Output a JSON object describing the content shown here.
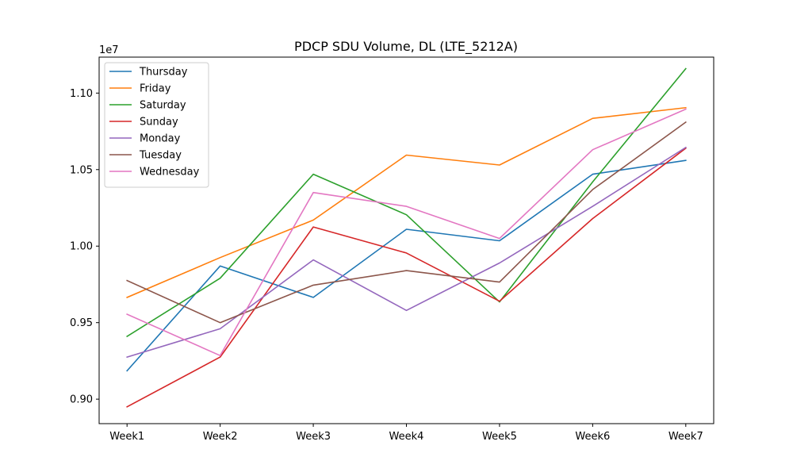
{
  "chart_data": {
    "type": "line",
    "title": "PDCP SDU Volume, DL (LTE_5212A)",
    "xlabel": "",
    "ylabel": "",
    "y_offset_text": "1e7",
    "categories": [
      "Week1",
      "Week2",
      "Week3",
      "Week4",
      "Week5",
      "Week6",
      "Week7"
    ],
    "ylim": [
      0.884,
      1.1235
    ],
    "y_ticks": [
      0.9,
      0.95,
      1.0,
      1.05,
      1.1
    ],
    "y_tick_labels": [
      "0.90",
      "0.95",
      "1.00",
      "1.05",
      "1.10"
    ],
    "grid": false,
    "legend_position": "top-left",
    "series": [
      {
        "name": "Thursday",
        "color": "#1f77b4",
        "values": [
          0.9185,
          0.987,
          0.9665,
          1.011,
          1.0035,
          1.047,
          1.056
        ]
      },
      {
        "name": "Friday",
        "color": "#ff7f0e",
        "values": [
          0.9665,
          0.9925,
          1.017,
          1.0595,
          1.053,
          1.0835,
          1.0905
        ]
      },
      {
        "name": "Saturday",
        "color": "#2ca02c",
        "values": [
          0.941,
          0.979,
          1.047,
          1.0205,
          0.9635,
          1.042,
          1.116
        ]
      },
      {
        "name": "Sunday",
        "color": "#d62728",
        "values": [
          0.895,
          0.9275,
          1.0125,
          0.9955,
          0.964,
          1.018,
          1.064
        ]
      },
      {
        "name": "Monday",
        "color": "#9467bd",
        "values": [
          0.9275,
          0.946,
          0.991,
          0.958,
          0.989,
          1.026,
          1.0645
        ]
      },
      {
        "name": "Tuesday",
        "color": "#8c564b",
        "values": [
          0.9775,
          0.95,
          0.9745,
          0.984,
          0.9765,
          1.037,
          1.081
        ]
      },
      {
        "name": "Wednesday",
        "color": "#e377c2",
        "values": [
          0.9555,
          0.9285,
          1.035,
          1.026,
          1.005,
          1.063,
          1.0895
        ]
      }
    ]
  }
}
